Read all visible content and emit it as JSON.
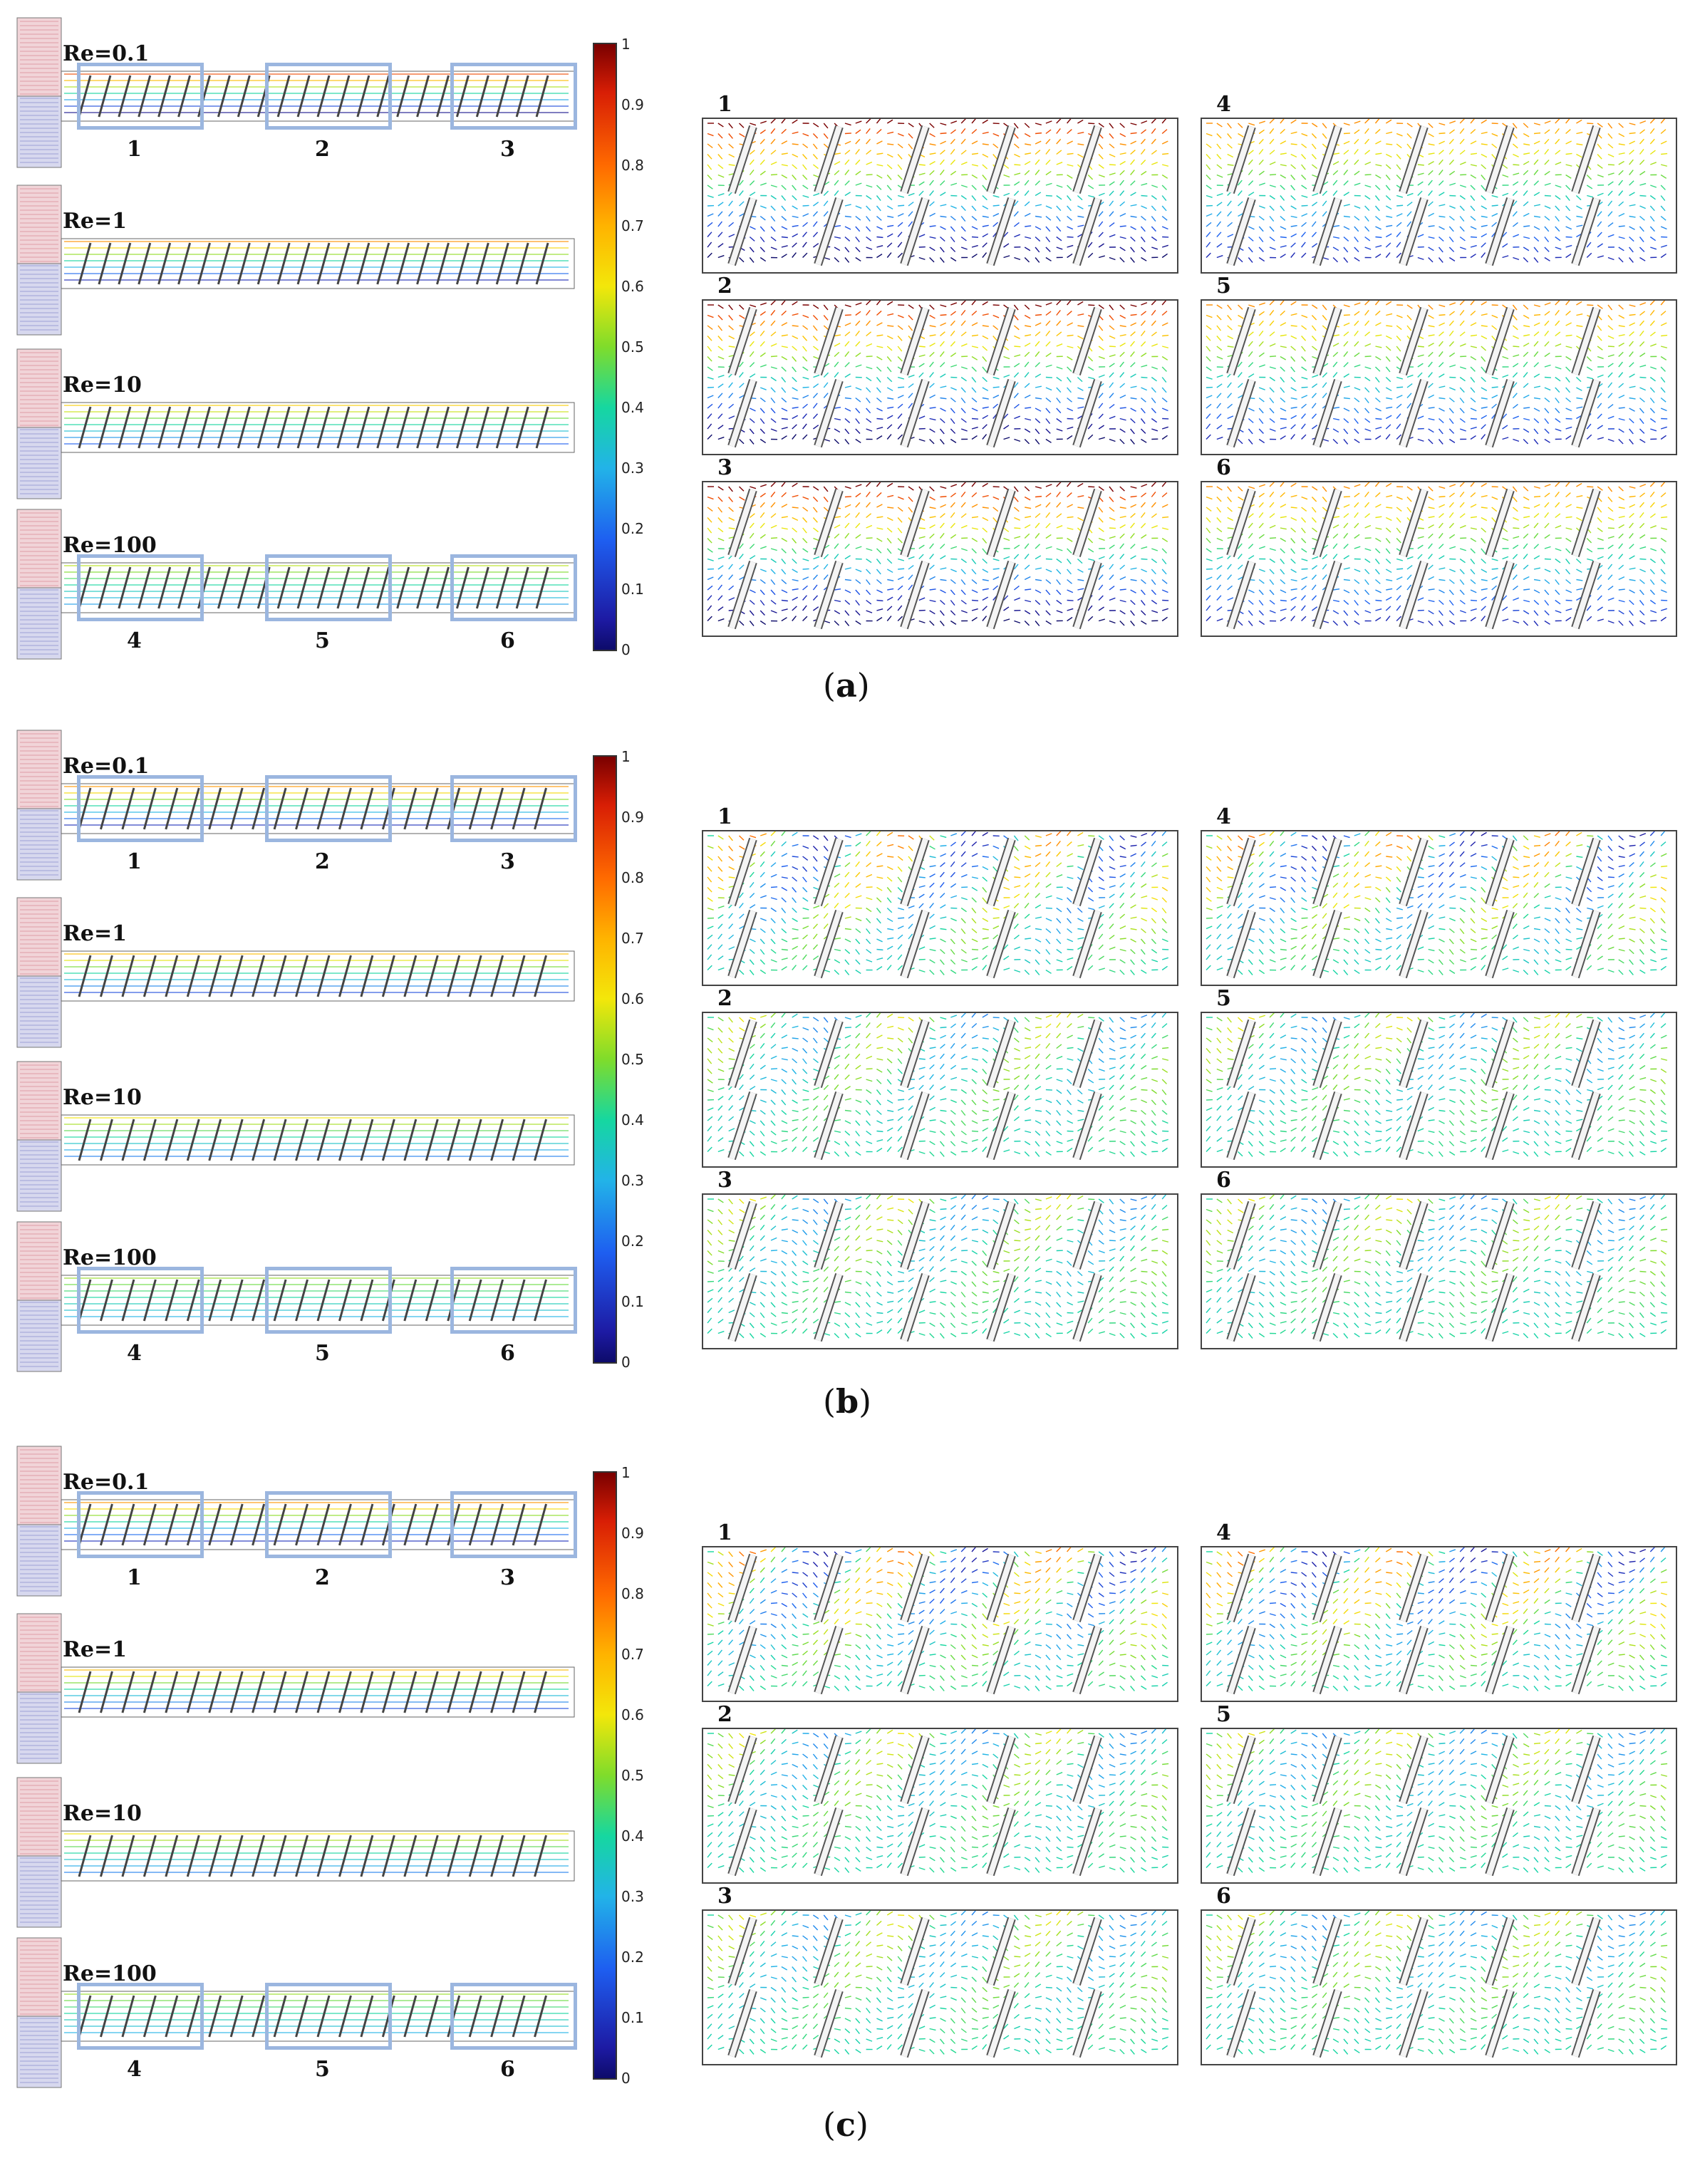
{
  "colorbar_ticks": [
    "1",
    "0.9",
    "0.8",
    "0.7",
    "0.6",
    "0.5",
    "0.4",
    "0.3",
    "0.2",
    "0.1",
    "0"
  ],
  "panels": [
    {
      "caption_open": "(",
      "caption_letter": "a",
      "caption_close": ")",
      "re_labels": [
        "Re=0.1",
        "Re=1",
        "Re=10",
        "Re=100"
      ],
      "box_labels_top": [
        "1",
        "2",
        "3"
      ],
      "box_labels_bottom": [
        "4",
        "5",
        "6"
      ],
      "zoom_labels": [
        "1",
        "2",
        "3",
        "4",
        "5",
        "6"
      ]
    },
    {
      "caption_open": "(",
      "caption_letter": "b",
      "caption_close": ")",
      "re_labels": [
        "Re=0.1",
        "Re=1",
        "Re=10",
        "Re=100"
      ],
      "box_labels_top": [
        "1",
        "2",
        "3"
      ],
      "box_labels_bottom": [
        "4",
        "5",
        "6"
      ],
      "zoom_labels": [
        "1",
        "2",
        "3",
        "4",
        "5",
        "6"
      ]
    },
    {
      "caption_open": "(",
      "caption_letter": "c",
      "caption_close": ")",
      "re_labels": [
        "Re=0.1",
        "Re=1",
        "Re=10",
        "Re=100"
      ],
      "box_labels_top": [
        "1",
        "2",
        "3"
      ],
      "box_labels_bottom": [
        "4",
        "5",
        "6"
      ],
      "zoom_labels": [
        "1",
        "2",
        "3",
        "4",
        "5",
        "6"
      ]
    }
  ],
  "colors": {
    "highlight_box": "#9bb6df",
    "inlet_top": "#c9566a",
    "inlet_bottom": "#5a5fb8"
  }
}
